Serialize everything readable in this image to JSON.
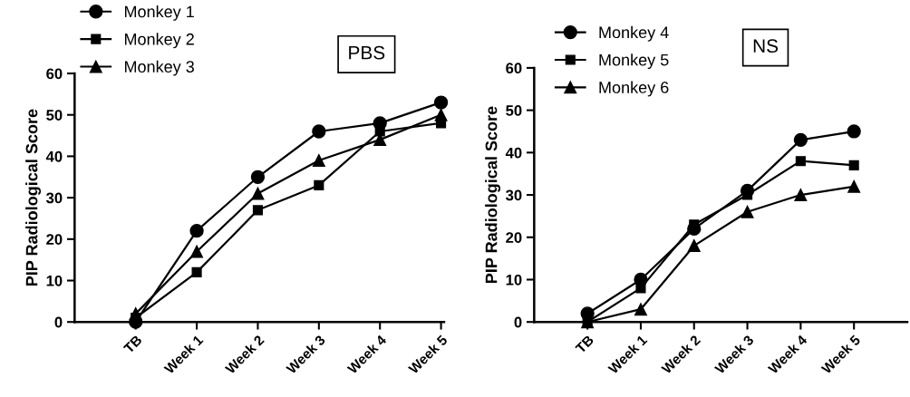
{
  "chart_data": [
    {
      "type": "line",
      "title": "PBS",
      "ylabel": "PIP Radiological Score",
      "categories": [
        "TB",
        "Week 1",
        "Week 2",
        "Week 3",
        "Week 4",
        "Week 5"
      ],
      "ylim": [
        0,
        60
      ],
      "yticks": [
        0,
        10,
        20,
        30,
        40,
        50,
        60
      ],
      "grid": false,
      "legend": "top left",
      "series": [
        {
          "name": "Monkey 1",
          "color": "#000000",
          "marker": "circle",
          "values": [
            0,
            22,
            35,
            46,
            48,
            53
          ]
        },
        {
          "name": "Monkey 2",
          "color": "#000000",
          "marker": "square",
          "values": [
            1,
            12,
            27,
            33,
            46,
            48
          ]
        },
        {
          "name": "Monkey 3",
          "color": "#000000",
          "marker": "triangle",
          "values": [
            2,
            17,
            31,
            39,
            44,
            50
          ]
        }
      ]
    },
    {
      "type": "line",
      "title": "NS",
      "ylabel": "PIP Radiological Score",
      "categories": [
        "TB",
        "Week 1",
        "Week 2",
        "Week 3",
        "Week 4",
        "Week 5"
      ],
      "ylim": [
        0,
        60
      ],
      "yticks": [
        0,
        10,
        20,
        30,
        40,
        50,
        60
      ],
      "grid": false,
      "legend": "top left",
      "series": [
        {
          "name": "Monkey 4",
          "color": "#000000",
          "marker": "circle",
          "values": [
            2,
            10,
            22,
            31,
            43,
            45
          ]
        },
        {
          "name": "Monkey 5",
          "color": "#000000",
          "marker": "square",
          "values": [
            0,
            8,
            23,
            30,
            38,
            37
          ]
        },
        {
          "name": "Monkey 6",
          "color": "#000000",
          "marker": "triangle",
          "values": [
            0,
            3,
            18,
            26,
            30,
            32
          ]
        }
      ]
    }
  ]
}
